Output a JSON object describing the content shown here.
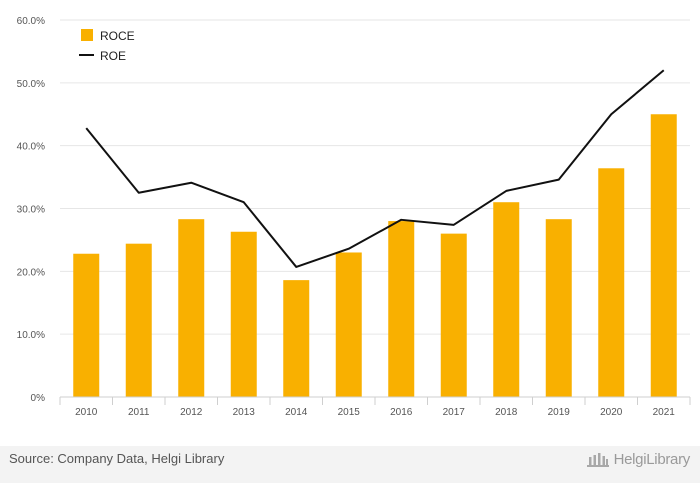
{
  "chart_data": {
    "type": "bar",
    "categories": [
      "2010",
      "2011",
      "2012",
      "2013",
      "2014",
      "2015",
      "2016",
      "2017",
      "2018",
      "2019",
      "2020",
      "2021"
    ],
    "series": [
      {
        "name": "ROCE",
        "type": "bar",
        "color": "#f9b000",
        "values": [
          22.8,
          24.4,
          28.3,
          26.3,
          18.6,
          23.0,
          28.0,
          26.0,
          31.0,
          28.3,
          36.4,
          45.0
        ]
      },
      {
        "name": "ROE",
        "type": "line",
        "color": "#111111",
        "values": [
          42.8,
          32.5,
          34.1,
          31.0,
          20.7,
          23.6,
          28.2,
          27.4,
          32.8,
          34.6,
          45.0,
          52.0
        ]
      }
    ],
    "ylim": [
      0,
      60
    ],
    "yticks": [
      0,
      10,
      20,
      30,
      40,
      50,
      60
    ],
    "ytick_labels": [
      "0%",
      "10.0%",
      "20.0%",
      "30.0%",
      "40.0%",
      "50.0%",
      "60.0%"
    ],
    "grid": true,
    "legend": "top-left"
  },
  "footer": {
    "source": "Source: Company Data, Helgi Library",
    "brand": "HelgiLibrary"
  }
}
